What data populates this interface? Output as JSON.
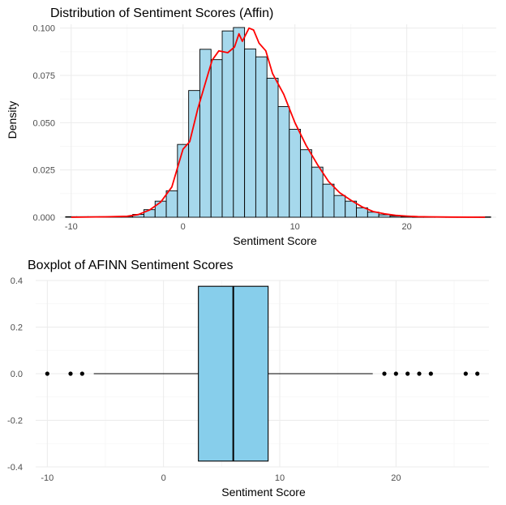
{
  "chart_data": [
    {
      "type": "histogram",
      "title": "Distribution of Sentiment Scores (Affin)",
      "xlabel": "Sentiment Score",
      "ylabel": "Density",
      "xlim": [
        -11,
        28
      ],
      "ylim": [
        0,
        0.102
      ],
      "x_ticks": [
        -10,
        0,
        10,
        20
      ],
      "x_tick_labels": [
        "-10",
        "0",
        "10",
        "20"
      ],
      "y_ticks": [
        0,
        0.025,
        0.05,
        0.075,
        0.1
      ],
      "y_tick_labels": [
        "0.000",
        "0.025",
        "0.050",
        "0.075",
        "0.100"
      ],
      "grid": true,
      "bin_width": 1,
      "bins": [
        {
          "x": -10,
          "y": 0.0003
        },
        {
          "x": -9,
          "y": 0.0003
        },
        {
          "x": -8,
          "y": 0.0003
        },
        {
          "x": -7,
          "y": 0.0003
        },
        {
          "x": -6,
          "y": 0.0003
        },
        {
          "x": -5,
          "y": 0.0005
        },
        {
          "x": -4,
          "y": 0.0015
        },
        {
          "x": -3,
          "y": 0.004
        },
        {
          "x": -2,
          "y": 0.0085
        },
        {
          "x": -1,
          "y": 0.014
        },
        {
          "x": 0,
          "y": 0.0385
        },
        {
          "x": 1,
          "y": 0.067
        },
        {
          "x": 2,
          "y": 0.0888
        },
        {
          "x": 3,
          "y": 0.0833
        },
        {
          "x": 4,
          "y": 0.0985
        },
        {
          "x": 5,
          "y": 0.1003
        },
        {
          "x": 6,
          "y": 0.089
        },
        {
          "x": 7,
          "y": 0.0848
        },
        {
          "x": 8,
          "y": 0.0735
        },
        {
          "x": 9,
          "y": 0.0585
        },
        {
          "x": 10,
          "y": 0.0465
        },
        {
          "x": 11,
          "y": 0.0357
        },
        {
          "x": 12,
          "y": 0.0265
        },
        {
          "x": 13,
          "y": 0.0175
        },
        {
          "x": 14,
          "y": 0.0115
        },
        {
          "x": 15,
          "y": 0.0085
        },
        {
          "x": 16,
          "y": 0.005
        },
        {
          "x": 17,
          "y": 0.0027
        },
        {
          "x": 18,
          "y": 0.0013
        },
        {
          "x": 19,
          "y": 0.0006
        },
        {
          "x": 20,
          "y": 0.0003
        },
        {
          "x": 21,
          "y": 0.0002
        },
        {
          "x": 22,
          "y": 0.0002
        },
        {
          "x": 23,
          "y": 0.0002
        },
        {
          "x": 24,
          "y": 0.0002
        },
        {
          "x": 25,
          "y": 0.0002
        },
        {
          "x": 26,
          "y": 0.0002
        },
        {
          "x": 27,
          "y": 0.0002
        }
      ],
      "density_curve": {
        "x": [
          -10,
          -7,
          -5,
          -4,
          -3,
          -2,
          -1,
          -0.5,
          0,
          0.6,
          1.3,
          2,
          2.6,
          3.2,
          4,
          4.6,
          5,
          5.3,
          5.9,
          6.3,
          6.8,
          7.4,
          8,
          9,
          10,
          11,
          12,
          13,
          14,
          15,
          16,
          17,
          18,
          19,
          20,
          21,
          22,
          24,
          27
        ],
        "y": [
          0,
          0.0002,
          0.0005,
          0.0014,
          0.0038,
          0.008,
          0.016,
          0.026,
          0.036,
          0.04,
          0.057,
          0.071,
          0.083,
          0.088,
          0.087,
          0.09,
          0.097,
          0.093,
          0.1,
          0.099,
          0.092,
          0.088,
          0.076,
          0.065,
          0.05,
          0.038,
          0.028,
          0.019,
          0.013,
          0.009,
          0.0055,
          0.003,
          0.0018,
          0.001,
          0.0006,
          0.0003,
          0.0002,
          0.0001,
          0
        ],
        "color": "#ff0000"
      },
      "colors": {
        "fill": "#a6d8ec",
        "outline": "#000000",
        "curve": "#ff0000"
      }
    },
    {
      "type": "boxplot",
      "title": "Boxplot of AFINN Sentiment Scores",
      "xlabel": "Sentiment Score",
      "ylabel": "",
      "xlim": [
        -11,
        28
      ],
      "ylim": [
        -0.4,
        0.4
      ],
      "x_ticks": [
        -10,
        0,
        10,
        20
      ],
      "x_tick_labels": [
        "-10",
        "0",
        "10",
        "20"
      ],
      "y_ticks": [
        -0.4,
        -0.2,
        0,
        0.2,
        0.4
      ],
      "y_tick_labels": [
        "-0.4",
        "-0.2",
        "0.0",
        "0.2",
        "0.4"
      ],
      "grid": true,
      "q1": 3,
      "median": 6,
      "q3": 9,
      "whisker_low": -6,
      "whisker_high": 18,
      "box_half_height": 0.375,
      "outliers": [
        -10,
        -8,
        -7,
        19,
        20,
        21,
        22,
        23,
        26,
        27
      ],
      "colors": {
        "fill": "#87ceeb",
        "outline": "#000000",
        "outlier": "#000000"
      }
    }
  ]
}
